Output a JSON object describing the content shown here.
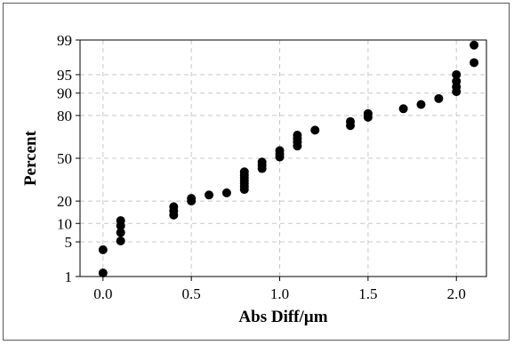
{
  "chart_data": {
    "type": "scatter",
    "title": "",
    "xlabel": "Abs Diff/µm",
    "ylabel": "Percent",
    "xlim": [
      -0.13,
      2.17
    ],
    "y_scale": "normal-probability",
    "ylim": [
      1,
      99
    ],
    "x_ticks": [
      0.0,
      0.5,
      1.0,
      1.5,
      2.0
    ],
    "x_tick_labels": [
      "0.0",
      "0.5",
      "1.0",
      "1.5",
      "2.0"
    ],
    "y_ticks": [
      1,
      5,
      10,
      20,
      50,
      80,
      90,
      95,
      99
    ],
    "y_tick_labels": [
      "1",
      "5",
      "10",
      "20",
      "50",
      "80",
      "90",
      "95",
      "99"
    ],
    "grid": true,
    "marker_color": "#000000",
    "series": [
      {
        "points": [
          {
            "x": 0.0,
            "y": 1.2
          },
          {
            "x": 0.0,
            "y": 3.6
          },
          {
            "x": 0.1,
            "y": 5.2
          },
          {
            "x": 0.1,
            "y": 7.2
          },
          {
            "x": 0.1,
            "y": 9.2
          },
          {
            "x": 0.1,
            "y": 11.0
          },
          {
            "x": 0.4,
            "y": 13.2
          },
          {
            "x": 0.4,
            "y": 15.0
          },
          {
            "x": 0.4,
            "y": 17.0
          },
          {
            "x": 0.5,
            "y": 20.0
          },
          {
            "x": 0.5,
            "y": 21.5
          },
          {
            "x": 0.6,
            "y": 23.5
          },
          {
            "x": 0.7,
            "y": 24.8
          },
          {
            "x": 0.8,
            "y": 27.0
          },
          {
            "x": 0.8,
            "y": 29.0
          },
          {
            "x": 0.8,
            "y": 31.0
          },
          {
            "x": 0.8,
            "y": 33.0
          },
          {
            "x": 0.8,
            "y": 35.0
          },
          {
            "x": 0.8,
            "y": 37.0
          },
          {
            "x": 0.8,
            "y": 39.5
          },
          {
            "x": 0.9,
            "y": 42.0
          },
          {
            "x": 0.9,
            "y": 44.5
          },
          {
            "x": 0.9,
            "y": 47.0
          },
          {
            "x": 1.0,
            "y": 51.0
          },
          {
            "x": 1.0,
            "y": 53.5
          },
          {
            "x": 1.0,
            "y": 56.0
          },
          {
            "x": 1.1,
            "y": 59.5
          },
          {
            "x": 1.1,
            "y": 62.5
          },
          {
            "x": 1.1,
            "y": 65.0
          },
          {
            "x": 1.1,
            "y": 67.5
          },
          {
            "x": 1.2,
            "y": 71.0
          },
          {
            "x": 1.4,
            "y": 74.0
          },
          {
            "x": 1.4,
            "y": 76.5
          },
          {
            "x": 1.5,
            "y": 79.0
          },
          {
            "x": 1.5,
            "y": 81.0
          },
          {
            "x": 1.7,
            "y": 83.5
          },
          {
            "x": 1.8,
            "y": 85.5
          },
          {
            "x": 1.9,
            "y": 88.0
          },
          {
            "x": 2.0,
            "y": 90.5
          },
          {
            "x": 2.0,
            "y": 92.0
          },
          {
            "x": 2.0,
            "y": 93.5
          },
          {
            "x": 2.0,
            "y": 95.0
          },
          {
            "x": 2.1,
            "y": 97.0
          },
          {
            "x": 2.1,
            "y": 98.7
          }
        ]
      }
    ]
  }
}
